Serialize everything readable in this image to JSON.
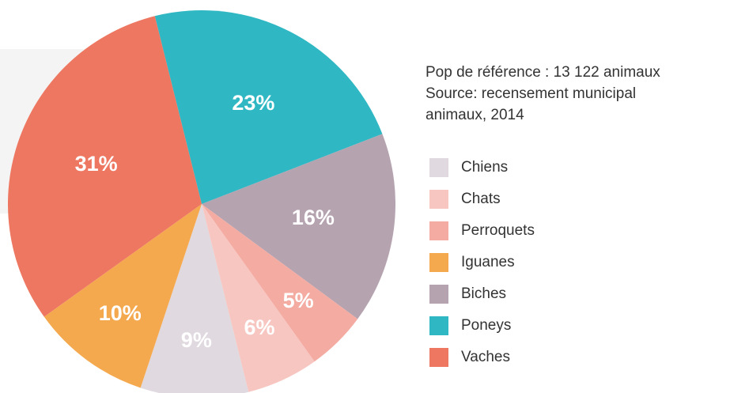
{
  "chart_data": {
    "type": "pie",
    "note": [
      "Pop de référence : 13 122 animaux",
      "Source: recensement municipal",
      "animaux, 2014"
    ],
    "categories": [
      "Chiens",
      "Chats",
      "Perroquets",
      "Iguanes",
      "Biches",
      "Poneys",
      "Vaches"
    ],
    "values": [
      9,
      6,
      5,
      10,
      16,
      23,
      31
    ],
    "value_labels": [
      "9%",
      "6%",
      "5%",
      "10%",
      "16%",
      "23%",
      "31%"
    ],
    "colors": [
      "#e0d9df",
      "#f7c6c1",
      "#f4aba2",
      "#f5a94f",
      "#b5a3b0",
      "#2fb8c3",
      "#ee7761"
    ],
    "legend": "right"
  }
}
